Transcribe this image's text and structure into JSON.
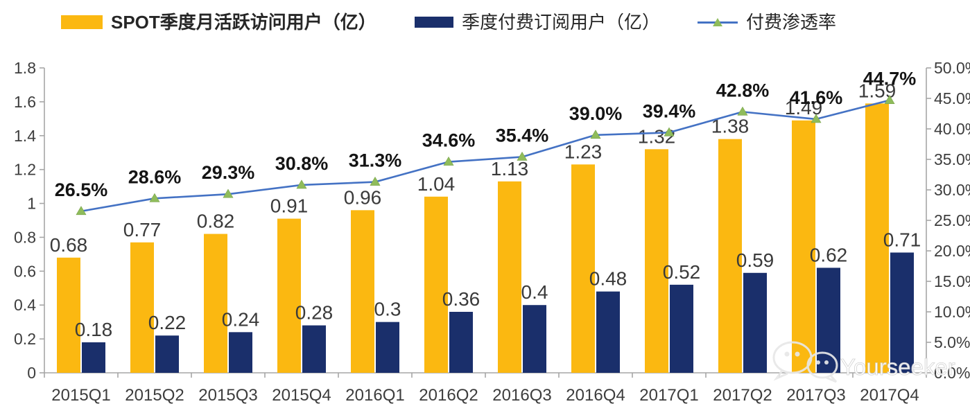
{
  "legend": {
    "items": [
      {
        "label": "SPOT季度月活跃访问用户（亿）",
        "swatch": "bar",
        "color": "#FBB811",
        "bold": true
      },
      {
        "label": "季度付费订阅用户（亿）",
        "swatch": "bar",
        "color": "#1A2F6B",
        "bold": false
      },
      {
        "label": "付费渗透率",
        "swatch": "line-triangle",
        "color": "#4472C4",
        "marker_color": "#8FBC5B",
        "bold": false
      }
    ]
  },
  "watermark": {
    "text": "Yourseeker",
    "icon": "wechat-icon"
  },
  "chart_data": {
    "type": "bar",
    "subtype": "bar+line-combo",
    "categories": [
      "2015Q1",
      "2015Q2",
      "2015Q3",
      "2015Q4",
      "2016Q1",
      "2016Q2",
      "2016Q3",
      "2016Q4",
      "2017Q1",
      "2017Q2",
      "2017Q3",
      "2017Q4"
    ],
    "series": [
      {
        "name": "SPOT季度月活跃访问用户（亿）",
        "type": "bar",
        "axis": "left",
        "color": "#FBB811",
        "values": [
          0.68,
          0.77,
          0.82,
          0.91,
          0.96,
          1.04,
          1.13,
          1.23,
          1.32,
          1.38,
          1.49,
          1.59
        ],
        "labels": [
          "0.68",
          "0.77",
          "0.82",
          "0.91",
          "0.96",
          "1.04",
          "1.13",
          "1.23",
          "1.32",
          "1.38",
          "1.49",
          "1.59"
        ]
      },
      {
        "name": "季度付费订阅用户（亿）",
        "type": "bar",
        "axis": "left",
        "color": "#1A2F6B",
        "values": [
          0.18,
          0.22,
          0.24,
          0.28,
          0.3,
          0.36,
          0.4,
          0.48,
          0.52,
          0.59,
          0.62,
          0.71
        ],
        "labels": [
          "0.18",
          "0.22",
          "0.24",
          "0.28",
          "0.3",
          "0.36",
          "0.4",
          "0.48",
          "0.52",
          "0.59",
          "0.62",
          "0.71"
        ]
      },
      {
        "name": "付费渗透率",
        "type": "line",
        "axis": "right",
        "color": "#4472C4",
        "marker": "triangle",
        "marker_color": "#8FBC5B",
        "values": [
          26.5,
          28.6,
          29.3,
          30.8,
          31.3,
          34.6,
          35.4,
          39.0,
          39.4,
          42.8,
          41.6,
          44.7
        ],
        "labels": [
          "26.5%",
          "28.6%",
          "29.3%",
          "30.8%",
          "31.3%",
          "34.6%",
          "35.4%",
          "39.0%",
          "39.4%",
          "42.8%",
          "41.6%",
          "44.7%"
        ]
      }
    ],
    "left_axis": {
      "min": 0,
      "max": 1.8,
      "ticks": [
        "0",
        "0.2",
        "0.4",
        "0.6",
        "0.8",
        "1",
        "1.2",
        "1.4",
        "1.6",
        "1.8"
      ]
    },
    "right_axis": {
      "min": 0,
      "max": 50,
      "ticks": [
        "0.0%",
        "5.0%",
        "10.0%",
        "15.0%",
        "20.0%",
        "25.0%",
        "30.0%",
        "35.0%",
        "40.0%",
        "45.0%",
        "50.0%"
      ]
    },
    "grid": false,
    "legend_position": "top",
    "axis_color": "#A6A6A6",
    "tick_label_color": "#3D3D3D",
    "bar_label_color": "#3A3A3A",
    "pct_label_color": "#141414"
  }
}
